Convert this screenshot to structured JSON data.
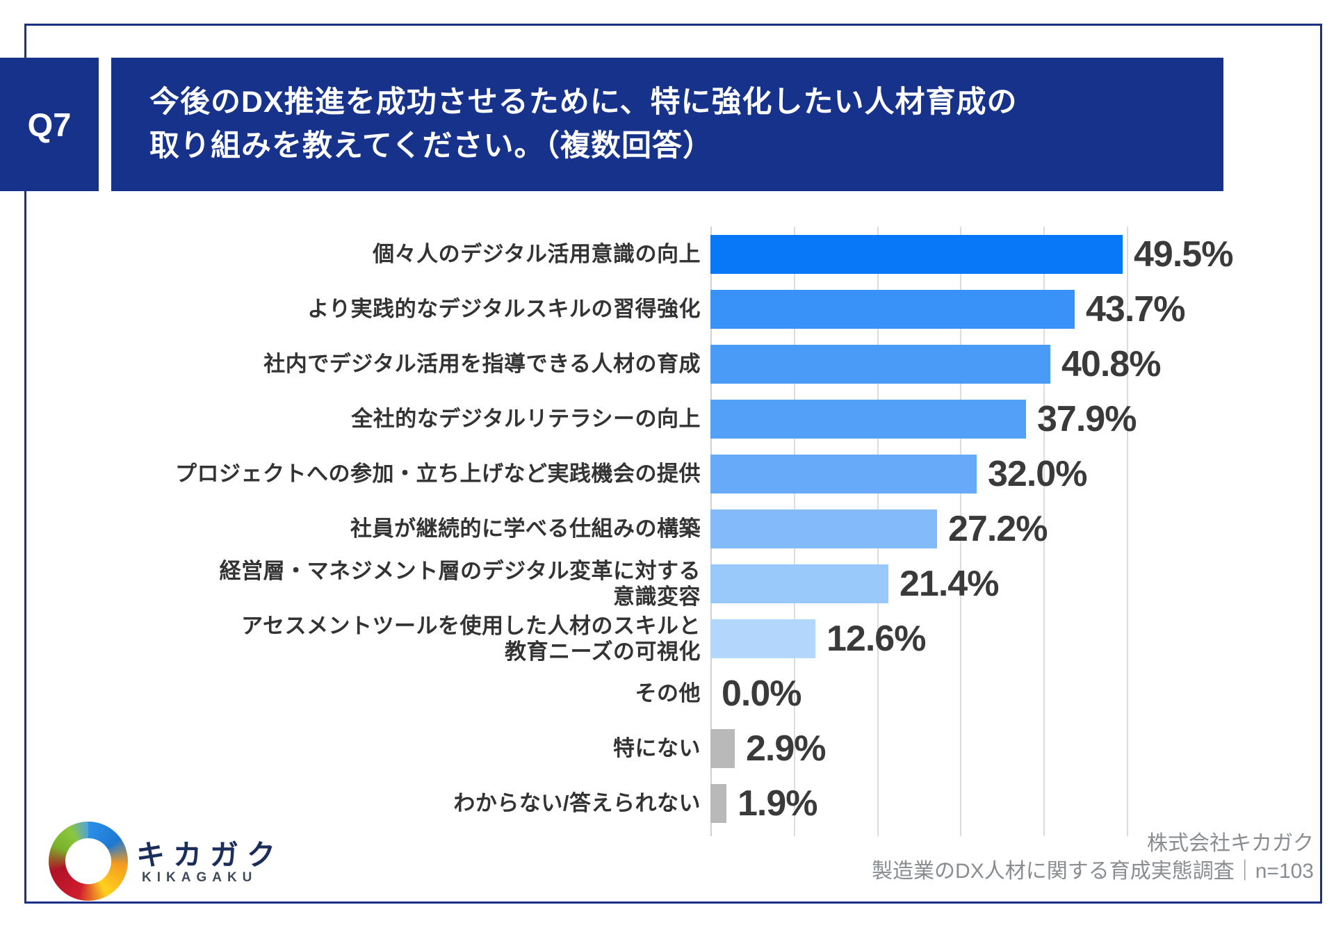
{
  "question": {
    "number": "Q7",
    "title_line1": "今後のDX推進を成功させるために、特に強化したい人材育成の",
    "title_line2": "取り組みを教えてください。（複数回答）"
  },
  "chart_data": {
    "type": "bar",
    "orientation": "horizontal",
    "title": "",
    "xlabel": "",
    "ylabel": "",
    "unit": "%",
    "xlim": [
      0,
      73
    ],
    "gridlines_pct": [
      0,
      10,
      20,
      30,
      40,
      50
    ],
    "grid": "vertical-only, no tick labels",
    "legend": "none",
    "categories": [
      "個々人のデジタル活用意識の向上",
      "より実践的なデジタルスキルの習得強化",
      "社内でデジタル活用を指導できる人材の育成",
      "全社的なデジタルリテラシーの向上",
      "プロジェクトへの参加・立ち上げなど実践機会の提供",
      "社員が継続的に学べる仕組みの構築",
      "経営層・マネジメント層のデジタル変革に対する意識変容",
      "アセスメントツールを使用した人材のスキルと教育ニーズの可視化",
      "その他",
      "特にない",
      "わからない/答えられない"
    ],
    "category_lines": [
      [
        "個々人のデジタル活用意識の向上"
      ],
      [
        "より実践的なデジタルスキルの習得強化"
      ],
      [
        "社内でデジタル活用を指導できる人材の育成"
      ],
      [
        "全社的なデジタルリテラシーの向上"
      ],
      [
        "プロジェクトへの参加・立ち上げなど実践機会の提供"
      ],
      [
        "社員が継続的に学べる仕組みの構築"
      ],
      [
        "経営層・マネジメント層のデジタル変革に対する",
        "意識変容"
      ],
      [
        "アセスメントツールを使用した人材のスキルと",
        "教育ニーズの可視化"
      ],
      [
        "その他"
      ],
      [
        "特にない"
      ],
      [
        "わからない/答えられない"
      ]
    ],
    "values": [
      49.5,
      43.7,
      40.8,
      37.9,
      32.0,
      27.2,
      21.4,
      12.6,
      0.0,
      2.9,
      1.9
    ],
    "value_labels": [
      "49.5%",
      "43.7%",
      "40.8%",
      "37.9%",
      "32.0%",
      "27.2%",
      "21.4%",
      "12.6%",
      "0.0%",
      "2.9%",
      "1.9%"
    ],
    "bar_colors": [
      "#0878f9",
      "#3892f7",
      "#4a9bf8",
      "#53a0f8",
      "#66aaf9",
      "#83bafa",
      "#99c8fb",
      "#b3d6fd",
      "#b3d6fd",
      "#b9b9b9",
      "#b9b9b9"
    ]
  },
  "footer": {
    "logo_name": "キカガク",
    "logo_romaji": "KIKAGAKU",
    "source_line1": "株式会社キカガク",
    "source_line2": "製造業のDX人材に関する育成実態調査｜n=103"
  },
  "colors": {
    "header_bg": "#16328b",
    "card_border": "#1b3087",
    "gridline": "#dcdcdc",
    "value_text": "#3a3a3a",
    "category_text": "#333333",
    "source_text": "#898c90",
    "gray_bar": "#b9b9b9",
    "top_bar_blue": "#0878f9"
  }
}
